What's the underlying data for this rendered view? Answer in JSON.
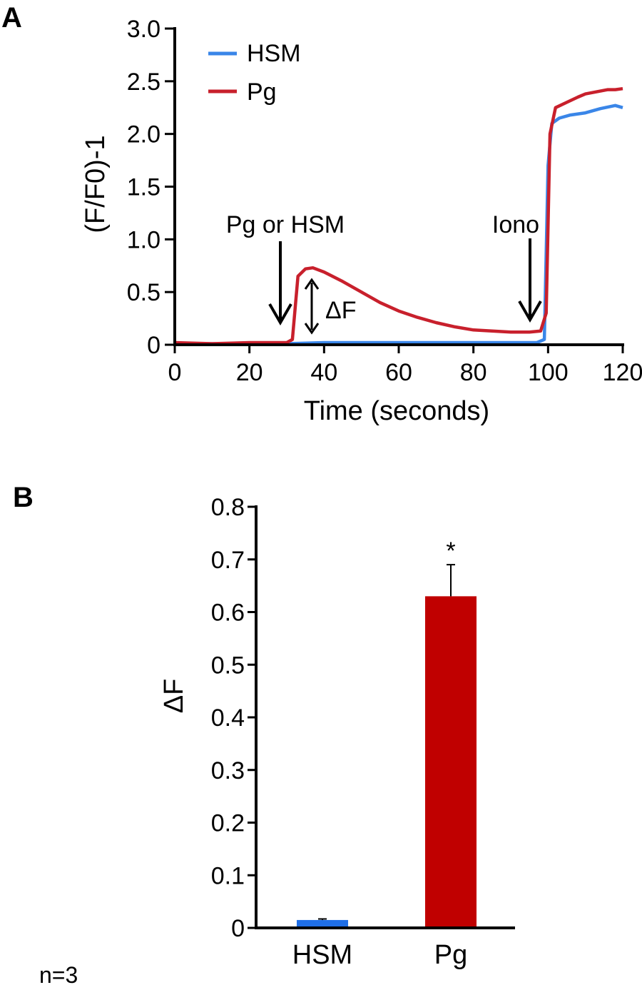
{
  "chart_data": [
    {
      "panel": "A",
      "type": "line",
      "xlabel": "Time (seconds)",
      "ylabel": "(F/F0)-1",
      "xlim": [
        0,
        120
      ],
      "ylim": [
        0,
        3.0
      ],
      "x_ticks": [
        0,
        20,
        40,
        60,
        80,
        100,
        120
      ],
      "x_tick_labels": [
        "0",
        "20",
        "40",
        "60",
        "80",
        "100",
        "120"
      ],
      "y_ticks": [
        0,
        0.5,
        1.0,
        1.5,
        2.0,
        2.5,
        3.0
      ],
      "y_tick_labels": [
        "0",
        "0.5",
        "1.0",
        "1.5",
        "2.0",
        "2.5",
        "3.0"
      ],
      "legend": {
        "position": "top-left",
        "entries": [
          "HSM",
          "Pg"
        ]
      },
      "series": [
        {
          "name": "HSM",
          "color": "#3a86e8",
          "points": [
            [
              0,
              0.01
            ],
            [
              10,
              0.01
            ],
            [
              20,
              0.01
            ],
            [
              30,
              0.01
            ],
            [
              40,
              0.02
            ],
            [
              50,
              0.02
            ],
            [
              60,
              0.02
            ],
            [
              70,
              0.02
            ],
            [
              80,
              0.02
            ],
            [
              90,
              0.02
            ],
            [
              97,
              0.02
            ],
            [
              99,
              0.05
            ],
            [
              100,
              1.7
            ],
            [
              101,
              2.1
            ],
            [
              103,
              2.15
            ],
            [
              106,
              2.18
            ],
            [
              110,
              2.2
            ],
            [
              114,
              2.24
            ],
            [
              118,
              2.27
            ],
            [
              120,
              2.25
            ]
          ]
        },
        {
          "name": "Pg",
          "color": "#c8202c",
          "points": [
            [
              0,
              0.02
            ],
            [
              10,
              0.01
            ],
            [
              20,
              0.02
            ],
            [
              30,
              0.02
            ],
            [
              31.5,
              0.05
            ],
            [
              33,
              0.65
            ],
            [
              35,
              0.72
            ],
            [
              37,
              0.73
            ],
            [
              40,
              0.69
            ],
            [
              45,
              0.6
            ],
            [
              50,
              0.5
            ],
            [
              55,
              0.4
            ],
            [
              60,
              0.32
            ],
            [
              65,
              0.26
            ],
            [
              70,
              0.21
            ],
            [
              75,
              0.17
            ],
            [
              80,
              0.14
            ],
            [
              85,
              0.13
            ],
            [
              90,
              0.12
            ],
            [
              95,
              0.12
            ],
            [
              98,
              0.13
            ],
            [
              99.5,
              0.3
            ],
            [
              100.5,
              2.0
            ],
            [
              102,
              2.25
            ],
            [
              105,
              2.3
            ],
            [
              108,
              2.35
            ],
            [
              110,
              2.38
            ],
            [
              113,
              2.4
            ],
            [
              116,
              2.42
            ],
            [
              118,
              2.42
            ],
            [
              120,
              2.43
            ]
          ]
        }
      ],
      "annotations": [
        {
          "text": "Pg or HSM",
          "x": 28,
          "y": 0.05,
          "kind": "arrow-down"
        },
        {
          "text": "Iono",
          "x": 95,
          "y": 0.15,
          "kind": "arrow-down"
        },
        {
          "text": "ΔF",
          "x": 36,
          "y_range": [
            0.05,
            0.6
          ],
          "kind": "double-arrow"
        }
      ]
    },
    {
      "panel": "B",
      "type": "bar",
      "categories": [
        "HSM",
        "Pg"
      ],
      "values": [
        0.015,
        0.63
      ],
      "errors": [
        0.002,
        0.06
      ],
      "colors": [
        "#1f6fe8",
        "#c00000"
      ],
      "ylabel": "ΔF",
      "ylim": [
        0,
        0.8
      ],
      "y_ticks": [
        0,
        0.1,
        0.2,
        0.3,
        0.4,
        0.5,
        0.6,
        0.7,
        0.8
      ],
      "y_tick_labels": [
        "0",
        "0.1",
        "0.2",
        "0.3",
        "0.4",
        "0.5",
        "0.6",
        "0.7",
        "0.8"
      ],
      "significance": {
        "category": "Pg",
        "mark": "*"
      }
    }
  ],
  "labels": {
    "panel_a": "A",
    "panel_b": "B",
    "n_note": "n=3"
  }
}
